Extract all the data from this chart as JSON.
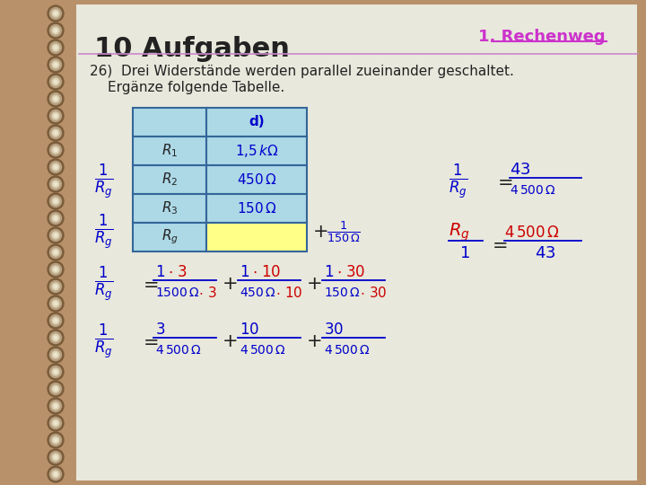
{
  "title": "10 Aufgaben",
  "subtitle": "1. Rechenweg",
  "bg_color": "#b8916a",
  "page_color": "#e8e8dc",
  "title_color": "#222222",
  "subtitle_color": "#cc33cc",
  "table_header_bg": "#add8e6",
  "table_row_bg": "#add8e6",
  "table_yellow_bg": "#ffff88",
  "table_border_color": "#336699",
  "table_data_text_color": "#0000cc",
  "formula_blue": "#0000cc",
  "formula_red": "#cc0000",
  "formula_black": "#222222",
  "col_header": "d)"
}
